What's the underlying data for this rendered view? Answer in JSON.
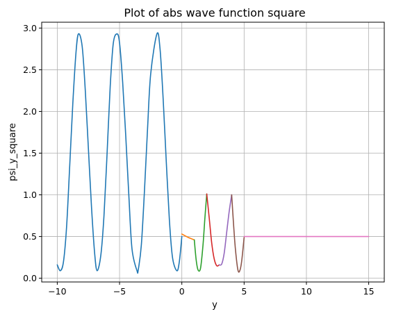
{
  "chart_data": {
    "type": "line",
    "title": "Plot of abs wave function square",
    "xlabel": "y",
    "ylabel": "psi_y_square",
    "xlim": [
      -11.25,
      16.25
    ],
    "ylim": [
      -0.045,
      3.07
    ],
    "xticks": [
      -10,
      -5,
      0,
      5,
      10,
      15
    ],
    "xtick_labels": [
      "−10",
      "−5",
      "0",
      "5",
      "10",
      "15"
    ],
    "yticks": [
      0.0,
      0.5,
      1.0,
      1.5,
      2.0,
      2.5,
      3.0
    ],
    "ytick_labels": [
      "0.0",
      "0.5",
      "1.0",
      "1.5",
      "2.0",
      "2.5",
      "3.0"
    ],
    "grid": true,
    "legend": "none",
    "series": [
      {
        "color": "#1f77b4",
        "x": [
          -10.0,
          -9.75,
          -9.5,
          -9.25,
          -9.0,
          -8.75,
          -8.5,
          -8.3,
          -8.0,
          -7.75,
          -7.5,
          -7.25,
          -7.0,
          -6.8,
          -6.5,
          -6.25,
          -6.0,
          -5.75,
          -5.5,
          -5.2,
          -5.0,
          -4.75,
          -4.5,
          -4.25,
          -4.0,
          -3.6,
          -3.5,
          -3.25,
          -3.0,
          -2.75,
          -2.5,
          -2.0,
          -1.75,
          -1.5,
          -1.25,
          -1.0,
          -0.75,
          -0.4,
          -0.2,
          0.0
        ],
        "y": [
          0.16,
          0.09,
          0.2,
          0.62,
          1.35,
          2.1,
          2.7,
          2.93,
          2.78,
          2.25,
          1.55,
          0.85,
          0.3,
          0.09,
          0.28,
          0.75,
          1.5,
          2.3,
          2.82,
          2.93,
          2.82,
          2.35,
          1.7,
          0.98,
          0.35,
          0.09,
          0.1,
          0.4,
          1.05,
          1.8,
          2.45,
          2.93,
          2.75,
          2.15,
          1.4,
          0.7,
          0.25,
          0.09,
          0.2,
          0.5
        ]
      },
      {
        "color": "#ff7f0e",
        "x": [
          0.0,
          0.5,
          1.0
        ],
        "y": [
          0.53,
          0.49,
          0.46
        ]
      },
      {
        "color": "#2ca02c",
        "x": [
          1.0,
          1.15,
          1.3,
          1.5,
          1.7,
          1.85,
          2.0
        ],
        "y": [
          0.46,
          0.22,
          0.1,
          0.12,
          0.4,
          0.72,
          1.01
        ]
      },
      {
        "color": "#d62728",
        "x": [
          2.0,
          2.2,
          2.4,
          2.6,
          2.8,
          3.0
        ],
        "y": [
          1.01,
          0.72,
          0.42,
          0.23,
          0.15,
          0.16
        ]
      },
      {
        "color": "#9467bd",
        "x": [
          3.0,
          3.2,
          3.4,
          3.6,
          3.8,
          4.0
        ],
        "y": [
          0.16,
          0.17,
          0.3,
          0.55,
          0.8,
          1.0
        ]
      },
      {
        "color": "#8c564b",
        "x": [
          4.0,
          4.15,
          4.3,
          4.5,
          4.65,
          4.8,
          5.0
        ],
        "y": [
          1.0,
          0.65,
          0.35,
          0.1,
          0.09,
          0.2,
          0.49
        ]
      },
      {
        "color": "#e377c2",
        "x": [
          5.0,
          10.0,
          15.0
        ],
        "y": [
          0.5,
          0.5,
          0.5
        ]
      }
    ]
  }
}
